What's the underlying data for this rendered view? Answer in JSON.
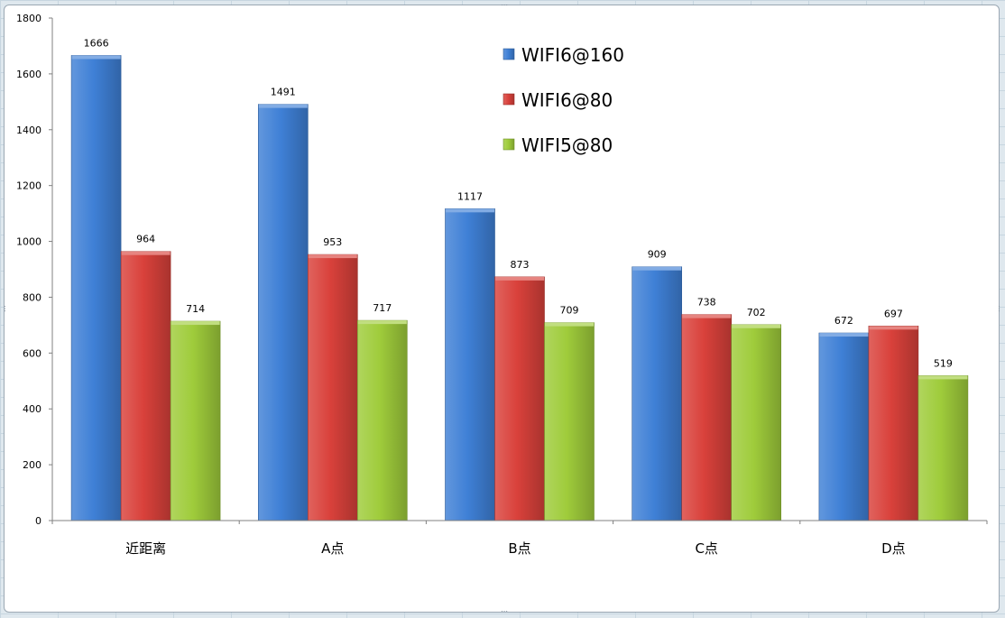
{
  "chart_data": {
    "type": "bar",
    "categories": [
      "近距离",
      "A点",
      "B点",
      "C点",
      "D点"
    ],
    "series": [
      {
        "name": "WIFI6@160",
        "values": [
          1666,
          1491,
          1117,
          909,
          672
        ],
        "color": "#3f80d6"
      },
      {
        "name": "WIFI6@80",
        "values": [
          964,
          953,
          873,
          738,
          697
        ],
        "color": "#d9413b"
      },
      {
        "name": "WIFI5@80",
        "values": [
          714,
          717,
          709,
          702,
          519
        ],
        "color": "#9fcc3b"
      }
    ],
    "yticks": [
      "0",
      "200",
      "400",
      "600",
      "800",
      "1000",
      "1200",
      "1400",
      "1600",
      "1800"
    ],
    "ylim": [
      0,
      1800
    ],
    "grid": false,
    "legend_position": "top-center",
    "title": "",
    "xlabel": "",
    "ylabel": ""
  }
}
